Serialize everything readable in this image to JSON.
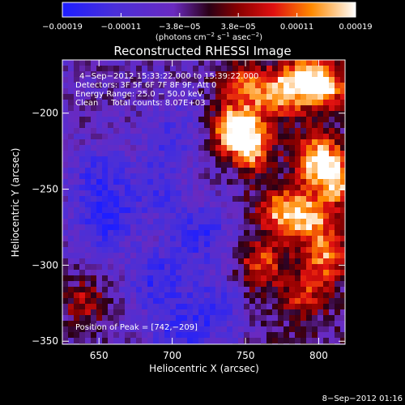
{
  "chart_data": {
    "type": "heatmap",
    "title": "Reconstructed RHESSI Image",
    "xlabel": "Heliocentric X (arcsec)",
    "ylabel": "Heliocentric Y (arcsec)",
    "xlim": [
      625,
      818
    ],
    "ylim": [
      -352,
      -165
    ],
    "x_ticks": [
      650,
      700,
      750,
      800
    ],
    "y_ticks": [
      -200,
      -250,
      -300,
      -350
    ],
    "x_tick_labels": [
      "650",
      "700",
      "750",
      "800"
    ],
    "y_tick_labels": [
      "−200",
      "−250",
      "−300",
      "−350"
    ],
    "colorbar": {
      "range": [
        -0.00019,
        0.00019
      ],
      "tick_labels": [
        "−0.00019",
        "−0.00011",
        "−3.8e−05",
        "3.8e−05",
        "0.00011",
        "0.00019"
      ],
      "unit_main": "(photons cm",
      "unit_sup1": "−2",
      "unit_mid": " s",
      "unit_sup2": "−1",
      "unit_mid2": " asec",
      "unit_sup3": "−2",
      "unit_end": ")"
    },
    "annotations": {
      "time": "4−Sep−2012 15:33:22.000 to 15:39:22.000",
      "detectors": "Detectors: 3F 5F 6F 7F 8F 9F, Att 0",
      "energy": "Energy Range: 25.0 − 50.0 keV",
      "clean": "Clean     Total counts: 8.07E+03",
      "peak": "Position of Peak = [742,−209]"
    },
    "hotspots": [
      {
        "x": 742,
        "y": -209,
        "weight": 1.0
      },
      {
        "x": 752,
        "y": -222,
        "weight": 0.9
      },
      {
        "x": 770,
        "y": -188,
        "weight": 0.8
      },
      {
        "x": 790,
        "y": -178,
        "weight": 0.85
      },
      {
        "x": 805,
        "y": -183,
        "weight": 0.75
      },
      {
        "x": 800,
        "y": -230,
        "weight": 0.95
      },
      {
        "x": 812,
        "y": -245,
        "weight": 0.8
      },
      {
        "x": 775,
        "y": -265,
        "weight": 0.8
      },
      {
        "x": 795,
        "y": -270,
        "weight": 0.75
      },
      {
        "x": 805,
        "y": -295,
        "weight": 0.7
      },
      {
        "x": 760,
        "y": -300,
        "weight": 0.6
      },
      {
        "x": 745,
        "y": -180,
        "weight": 0.6
      },
      {
        "x": 640,
        "y": -325,
        "weight": 0.5
      },
      {
        "x": 790,
        "y": -320,
        "weight": 0.5
      }
    ],
    "coldspots": [
      {
        "x": 655,
        "y": -270,
        "weight": 0.8
      },
      {
        "x": 690,
        "y": -310,
        "weight": 0.7
      },
      {
        "x": 650,
        "y": -240,
        "weight": 0.6
      },
      {
        "x": 720,
        "y": -280,
        "weight": 0.7
      },
      {
        "x": 690,
        "y": -250,
        "weight": 0.5
      },
      {
        "x": 705,
        "y": -345,
        "weight": 0.6
      },
      {
        "x": 730,
        "y": -330,
        "weight": 0.6
      },
      {
        "x": 700,
        "y": -215,
        "weight": 0.5
      }
    ]
  },
  "footer": {
    "timestamp": "8−Sep−2012 01:16"
  }
}
